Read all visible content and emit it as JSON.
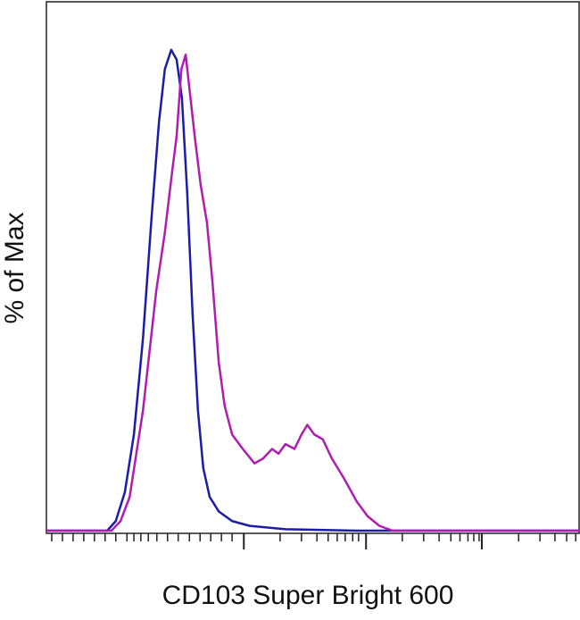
{
  "chart_data": {
    "type": "line",
    "x_label": "CD103 Super Bright 600",
    "y_label": "% of Max",
    "xlim": [
      0,
      100
    ],
    "ylim": [
      0,
      110
    ],
    "xticks": [
      1.0,
      3.0,
      5.0,
      7.0,
      9.0,
      11.0,
      13.0,
      15.1,
      16.4,
      17.7,
      19.1,
      20.7,
      22.7,
      24.7,
      26.8,
      28.8,
      30.8,
      32.8,
      34.8,
      37.0,
      43.8,
      47.8,
      50.7,
      52.8,
      54.5,
      56.0,
      57.4,
      58.5,
      59.9,
      66.7,
      70.7,
      73.6,
      75.8,
      77.5,
      79.0,
      80.1,
      81.1,
      81.6,
      88.5,
      92.5,
      95.3,
      97.5,
      99.2
    ],
    "x_major_ticks": [
      37.0,
      59.9,
      81.6
    ],
    "series": [
      {
        "color": "#1c1ca8",
        "x": [
          0,
          11.4,
          13.0,
          14.7,
          16.4,
          18.1,
          19.7,
          21.1,
          22.2,
          23.4,
          24.4,
          25.4,
          26.4,
          27.4,
          28.4,
          29.4,
          30.6,
          32.3,
          34.8,
          38.1,
          44.8,
          58.2,
          100
        ],
        "values": [
          0,
          0,
          2,
          8,
          20,
          40,
          65,
          85,
          96,
          100,
          98,
          90,
          70,
          45,
          25,
          13,
          7,
          4,
          2,
          1,
          0.3,
          0,
          0
        ]
      },
      {
        "color": "#b01cb0",
        "x": [
          0,
          12.2,
          13.9,
          15.6,
          18.1,
          20.6,
          22.2,
          23.6,
          24.4,
          25.3,
          26.1,
          26.8,
          27.8,
          28.9,
          30.1,
          31.1,
          32.3,
          33.4,
          34.8,
          36.8,
          39.0,
          40.6,
          42.3,
          43.5,
          44.8,
          46.5,
          47.8,
          48.9,
          50.2,
          51.8,
          53.5,
          55.7,
          58.2,
          60.2,
          62.4,
          64.9,
          100
        ],
        "values": [
          0,
          0,
          2,
          7,
          25,
          50,
          62,
          75,
          82,
          96,
          99,
          92,
          82,
          72,
          64,
          52,
          35,
          26,
          20,
          17,
          14,
          15,
          17,
          16,
          18,
          17,
          20,
          22,
          20,
          19,
          15,
          11,
          6,
          3,
          1,
          0,
          0
        ]
      }
    ]
  }
}
